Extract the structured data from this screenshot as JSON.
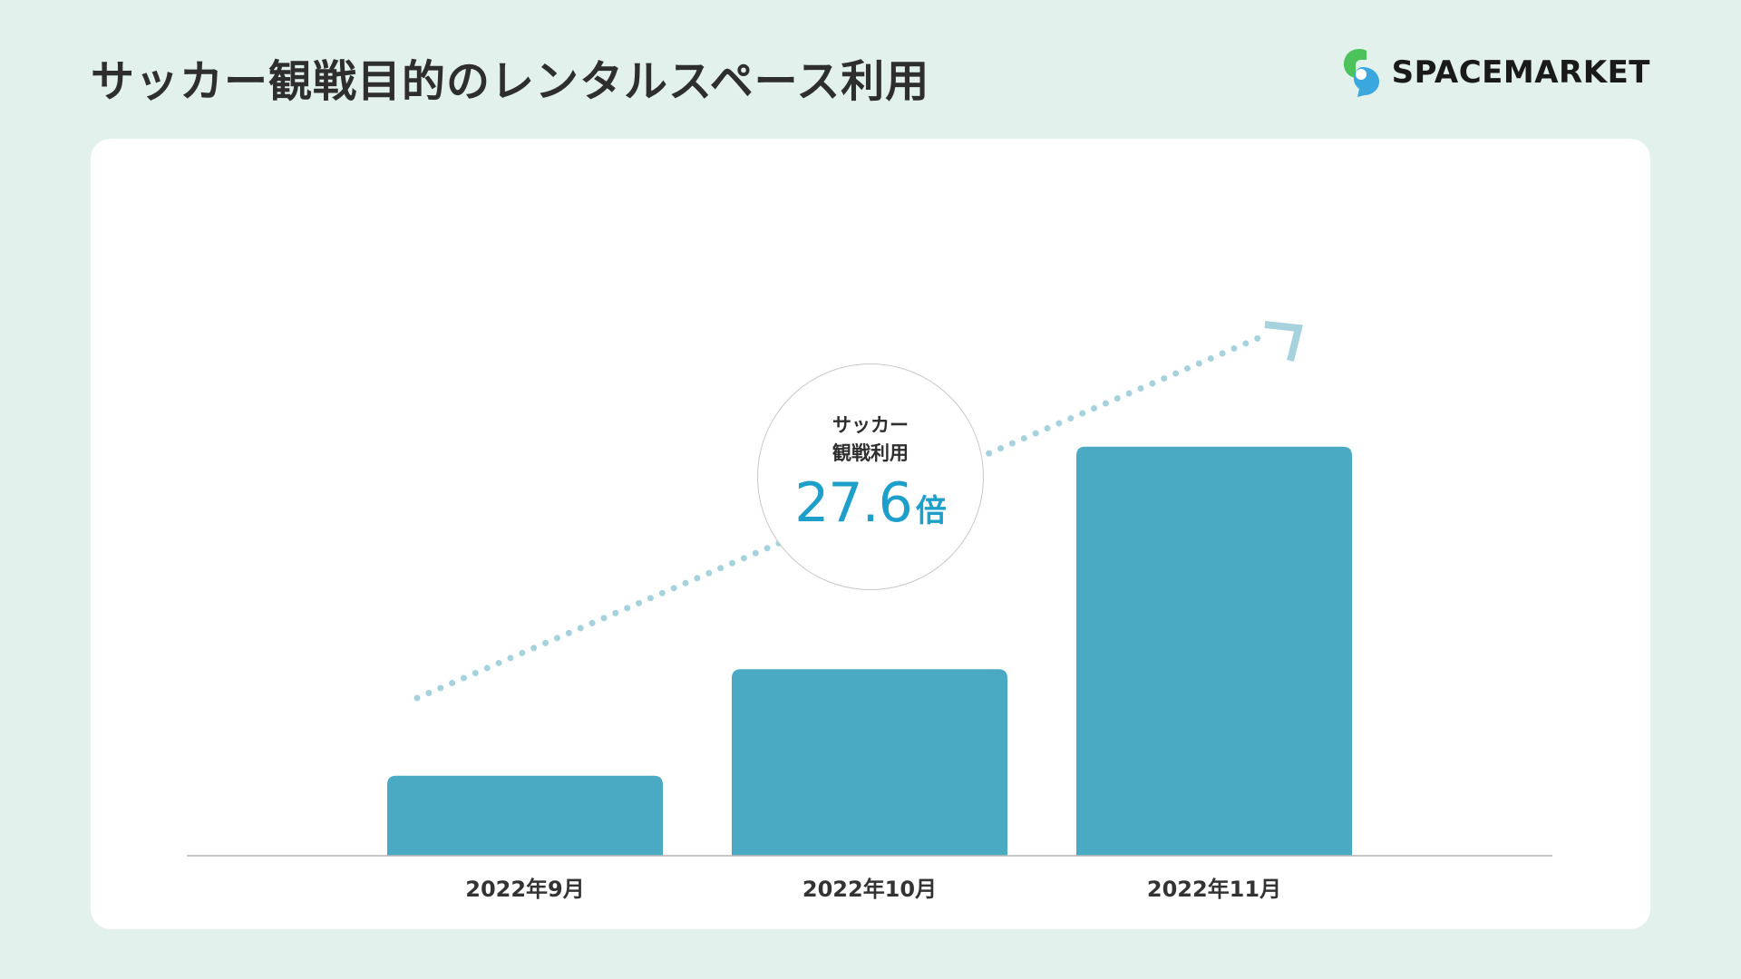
{
  "header": {
    "title": "サッカー観戦目的のレンタルスペース利用",
    "brand_name": "SPACEMARKET",
    "brand_logo_icon": "spacemarket-logo-icon"
  },
  "badge": {
    "label": "サッカー\n観戦利用",
    "value": "27.6",
    "unit": "倍"
  },
  "colors": {
    "background": "#e2f1ec",
    "card": "#ffffff",
    "bar": "#4aaac4",
    "trend": "#a6d2de",
    "accent": "#1e9fc9",
    "logo_green": "#4cc35a",
    "logo_blue": "#3aa8df"
  },
  "chart_data": {
    "type": "bar",
    "categories": [
      "2022年9月",
      "2022年10月",
      "2022年11月"
    ],
    "values": [
      1.0,
      2.33,
      5.11
    ],
    "ylim": [
      0,
      6
    ],
    "grid": false,
    "trend_arrow": true,
    "title": "",
    "xlabel": "",
    "ylabel": ""
  }
}
